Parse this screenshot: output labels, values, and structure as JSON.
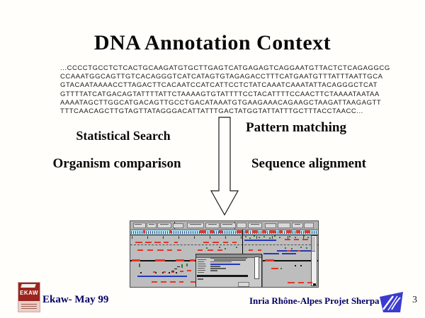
{
  "slide": {
    "title": "DNA Annotation Context",
    "sequence_lines": [
      "...CCCCTGCCTCTCACTGCAAGATGTGCTTGAGTCATGAGAGTCAGGAATGTTACTCTCAGAGGCG",
      "CCAAATGGCAGTTGTCACAGGGTCATCATAGTGTAGAGACCTTTCATGAATGTTTATTTAATTGCA",
      "GTACAATAAAACCTTAGACTTCACAATCCATCATTCCTCTATCAAATCAAATATTACAGGGCTCAT",
      "GTTTTATCATGACAGTATTTTATTCTAAAAGTGTATTTTCCTACATTTTCCAACTTCTAAAATAATAA",
      "AAAATAGCTTGGCATGACAGTTGCCTGACATAAATGTGAAGAAACAGAAGCTAAGATTAAGAGTT",
      "TTTCAACAGCTTGTAGTTATAGGGACATTATTTGACTATGGTATTATTTGCTTTACCTAACC..."
    ],
    "labels": {
      "statistical_search": "Statistical Search",
      "pattern_matching": "Pattern matching",
      "organism_comparison": "Organism comparison",
      "sequence_alignment": "Sequence alignment"
    },
    "footer": {
      "left": "Ekaw- May 99",
      "right": "Inria Rhône-Alpes Projet Sherpa",
      "page_number": "3",
      "ekaw_logo_text": "EKAW"
    }
  },
  "colors": {
    "footer_text": "#000066",
    "ruler_cyan": "#b6e7f6",
    "window_gray": "#bdbdbd",
    "feature_red": "#e0372b",
    "feature_blue": "#2737b8",
    "feature_green": "#2f7a33"
  },
  "screenshot": {
    "description": "genome annotation tool window with feature tracks and properties dialog",
    "palette": {
      "r": "#e0372b",
      "b": "#2737b8",
      "g": "#2f7a33",
      "k": "#161616",
      "w": "#ffffff",
      "d": "#d8d8d8",
      "s": "#5a5a5a"
    },
    "marks": [
      [
        62,
        1,
        1,
        10,
        "k"
      ],
      [
        147,
        1,
        1,
        10,
        "k"
      ],
      [
        4,
        2,
        16,
        6,
        "d"
      ],
      [
        23,
        2,
        12,
        6,
        "d"
      ],
      [
        38,
        2,
        18,
        6,
        "d"
      ],
      [
        60,
        3,
        13,
        5,
        "d"
      ],
      [
        80,
        2,
        22,
        6,
        "d"
      ],
      [
        106,
        2,
        18,
        6,
        "d"
      ],
      [
        127,
        2,
        20,
        6,
        "d"
      ],
      [
        150,
        2,
        12,
        6,
        "d"
      ],
      [
        166,
        2,
        18,
        6,
        "d"
      ],
      [
        190,
        3,
        14,
        5,
        "d"
      ],
      [
        208,
        2,
        16,
        6,
        "d"
      ],
      [
        228,
        2,
        14,
        6,
        "d"
      ],
      [
        245,
        2,
        12,
        6,
        "d"
      ],
      [
        6,
        4,
        10,
        1,
        "s"
      ],
      [
        26,
        4,
        8,
        1,
        "s"
      ],
      [
        42,
        4,
        12,
        1,
        "s"
      ],
      [
        84,
        4,
        16,
        1,
        "s"
      ],
      [
        110,
        4,
        12,
        1,
        "s"
      ],
      [
        130,
        4,
        14,
        1,
        "s"
      ],
      [
        170,
        4,
        12,
        1,
        "s"
      ],
      [
        232,
        4,
        8,
        1,
        "s"
      ],
      [
        18,
        13,
        3,
        4,
        "r"
      ],
      [
        55,
        13,
        3,
        4,
        "r"
      ],
      [
        98,
        13,
        9,
        4,
        "r"
      ],
      [
        112,
        13,
        6,
        4,
        "r"
      ],
      [
        125,
        13,
        5,
        4,
        "r"
      ],
      [
        150,
        13,
        8,
        4,
        "r"
      ],
      [
        162,
        13,
        5,
        4,
        "r"
      ],
      [
        172,
        13,
        8,
        4,
        "r"
      ],
      [
        186,
        13,
        6,
        4,
        "r"
      ],
      [
        196,
        13,
        9,
        4,
        "r"
      ],
      [
        210,
        13,
        5,
        4,
        "r"
      ],
      [
        220,
        13,
        8,
        4,
        "r"
      ],
      [
        234,
        13,
        6,
        4,
        "r"
      ],
      [
        246,
        13,
        8,
        4,
        "r"
      ],
      [
        162,
        21,
        2,
        2,
        "g"
      ],
      [
        168,
        23,
        2,
        2,
        "g"
      ],
      [
        174,
        20,
        2,
        2,
        "g"
      ],
      [
        181,
        22,
        2,
        2,
        "g"
      ],
      [
        188,
        21,
        2,
        2,
        "g"
      ],
      [
        196,
        23,
        2,
        2,
        "g"
      ],
      [
        203,
        20,
        2,
        2,
        "g"
      ],
      [
        210,
        22,
        2,
        2,
        "g"
      ],
      [
        224,
        21,
        2,
        2,
        "g"
      ],
      [
        232,
        22,
        2,
        2,
        "g"
      ],
      [
        244,
        20,
        2,
        2,
        "g"
      ],
      [
        250,
        22,
        2,
        2,
        "g"
      ],
      [
        161,
        26,
        45,
        2,
        "b"
      ],
      [
        218,
        25,
        8,
        2,
        "r"
      ],
      [
        231,
        25,
        7,
        2,
        "r"
      ],
      [
        243,
        25,
        8,
        2,
        "r"
      ],
      [
        7,
        29,
        10,
        2,
        "r"
      ],
      [
        21,
        29,
        9,
        2,
        "r"
      ],
      [
        34,
        29,
        9,
        2,
        "r"
      ],
      [
        47,
        29,
        7,
        2,
        "r"
      ],
      [
        62,
        29,
        5,
        2,
        "r"
      ],
      [
        103,
        29,
        8,
        2,
        "r"
      ],
      [
        116,
        29,
        9,
        2,
        "r"
      ],
      [
        131,
        29,
        7,
        2,
        "r"
      ],
      [
        144,
        29,
        6,
        2,
        "r"
      ],
      [
        10,
        40,
        8,
        2,
        "r"
      ],
      [
        24,
        40,
        8,
        2,
        "r"
      ],
      [
        38,
        40,
        9,
        2,
        "r"
      ],
      [
        52,
        40,
        7,
        2,
        "r"
      ],
      [
        66,
        40,
        6,
        2,
        "r"
      ],
      [
        95,
        40,
        7,
        2,
        "r"
      ],
      [
        109,
        40,
        8,
        2,
        "r"
      ],
      [
        123,
        40,
        7,
        2,
        "r"
      ],
      [
        167,
        40,
        6,
        2,
        "r"
      ],
      [
        180,
        40,
        5,
        2,
        "r"
      ],
      [
        107,
        37,
        2,
        2,
        "g"
      ],
      [
        125,
        36,
        2,
        2,
        "g"
      ],
      [
        133,
        38,
        2,
        2,
        "g"
      ],
      [
        149,
        36,
        2,
        2,
        "g"
      ],
      [
        218,
        37,
        2,
        2,
        "g"
      ],
      [
        227,
        38,
        2,
        2,
        "g"
      ],
      [
        240,
        36,
        2,
        2,
        "g"
      ],
      [
        248,
        37,
        2,
        2,
        "g"
      ],
      [
        207,
        41,
        48,
        2,
        "b"
      ],
      [
        188,
        45,
        22,
        2,
        "b"
      ],
      [
        214,
        45,
        20,
        2,
        "b"
      ],
      [
        221,
        41,
        5,
        2,
        "r"
      ],
      [
        236,
        41,
        4,
        2,
        "r"
      ],
      [
        2,
        54,
        12,
        3,
        "r"
      ],
      [
        35,
        54,
        14,
        3,
        "r"
      ],
      [
        64,
        54,
        12,
        3,
        "r"
      ],
      [
        84,
        54,
        7,
        3,
        "r"
      ],
      [
        190,
        54,
        13,
        3,
        "r"
      ],
      [
        12,
        60,
        2,
        5,
        "g"
      ],
      [
        72,
        61,
        2,
        5,
        "g"
      ],
      [
        79,
        60,
        2,
        4,
        "g"
      ],
      [
        14,
        72,
        2,
        2,
        "k"
      ],
      [
        35,
        72,
        2,
        2,
        "k"
      ],
      [
        45,
        72,
        2,
        2,
        "k"
      ],
      [
        54,
        72,
        2,
        2,
        "k"
      ],
      [
        64,
        72,
        2,
        2,
        "k"
      ],
      [
        58,
        70,
        4,
        1,
        "k"
      ],
      [
        62,
        67,
        4,
        1,
        "k"
      ],
      [
        66,
        64,
        4,
        1,
        "k"
      ],
      [
        32,
        71,
        4,
        2,
        "r"
      ],
      [
        46,
        71,
        4,
        2,
        "r"
      ],
      [
        58,
        71,
        4,
        2,
        "r"
      ],
      [
        70,
        70,
        5,
        2,
        "r"
      ],
      [
        80,
        69,
        6,
        2,
        "r"
      ],
      [
        10,
        77,
        70,
        2,
        "b"
      ],
      [
        30,
        85,
        8,
        2,
        "r"
      ],
      [
        43,
        85,
        8,
        2,
        "r"
      ],
      [
        56,
        85,
        8,
        2,
        "r"
      ],
      [
        69,
        85,
        6,
        2,
        "r"
      ],
      [
        85,
        85,
        7,
        2,
        "r"
      ],
      [
        199,
        66,
        10,
        2,
        "r"
      ],
      [
        212,
        66,
        2,
        2,
        "g"
      ],
      [
        232,
        62,
        2,
        2,
        "k"
      ],
      [
        240,
        62,
        2,
        2,
        "k"
      ],
      [
        222,
        86,
        10,
        2,
        "r"
      ],
      [
        237,
        86,
        8,
        2,
        "r"
      ],
      [
        250,
        86,
        7,
        2,
        "r"
      ],
      [
        258,
        88,
        4,
        3,
        "k"
      ]
    ],
    "dialog_marks": [
      [
        95,
        51,
        10,
        1,
        "s"
      ],
      [
        95,
        54,
        12,
        1,
        "s"
      ],
      [
        95,
        57,
        9,
        1,
        "s"
      ],
      [
        95,
        60,
        11,
        1,
        "s"
      ],
      [
        95,
        63,
        12,
        1,
        "s"
      ],
      [
        95,
        66,
        10,
        1,
        "s"
      ],
      [
        95,
        69,
        11,
        1,
        "s"
      ],
      [
        95,
        72,
        9,
        1,
        "s"
      ],
      [
        113,
        51,
        52,
        2,
        "s"
      ],
      [
        118,
        54,
        45,
        2,
        "s"
      ],
      [
        113,
        57,
        30,
        1,
        "s"
      ],
      [
        113,
        60,
        42,
        2,
        "b"
      ],
      [
        113,
        63,
        14,
        2,
        "s"
      ],
      [
        113,
        66,
        22,
        2,
        "s"
      ],
      [
        113,
        69,
        10,
        2,
        "s"
      ],
      [
        94,
        76,
        72,
        3,
        "k"
      ],
      [
        95,
        81,
        8,
        2,
        "s"
      ],
      [
        175,
        50,
        5,
        30,
        "w"
      ],
      [
        152,
        86,
        14,
        5,
        "d"
      ]
    ]
  }
}
